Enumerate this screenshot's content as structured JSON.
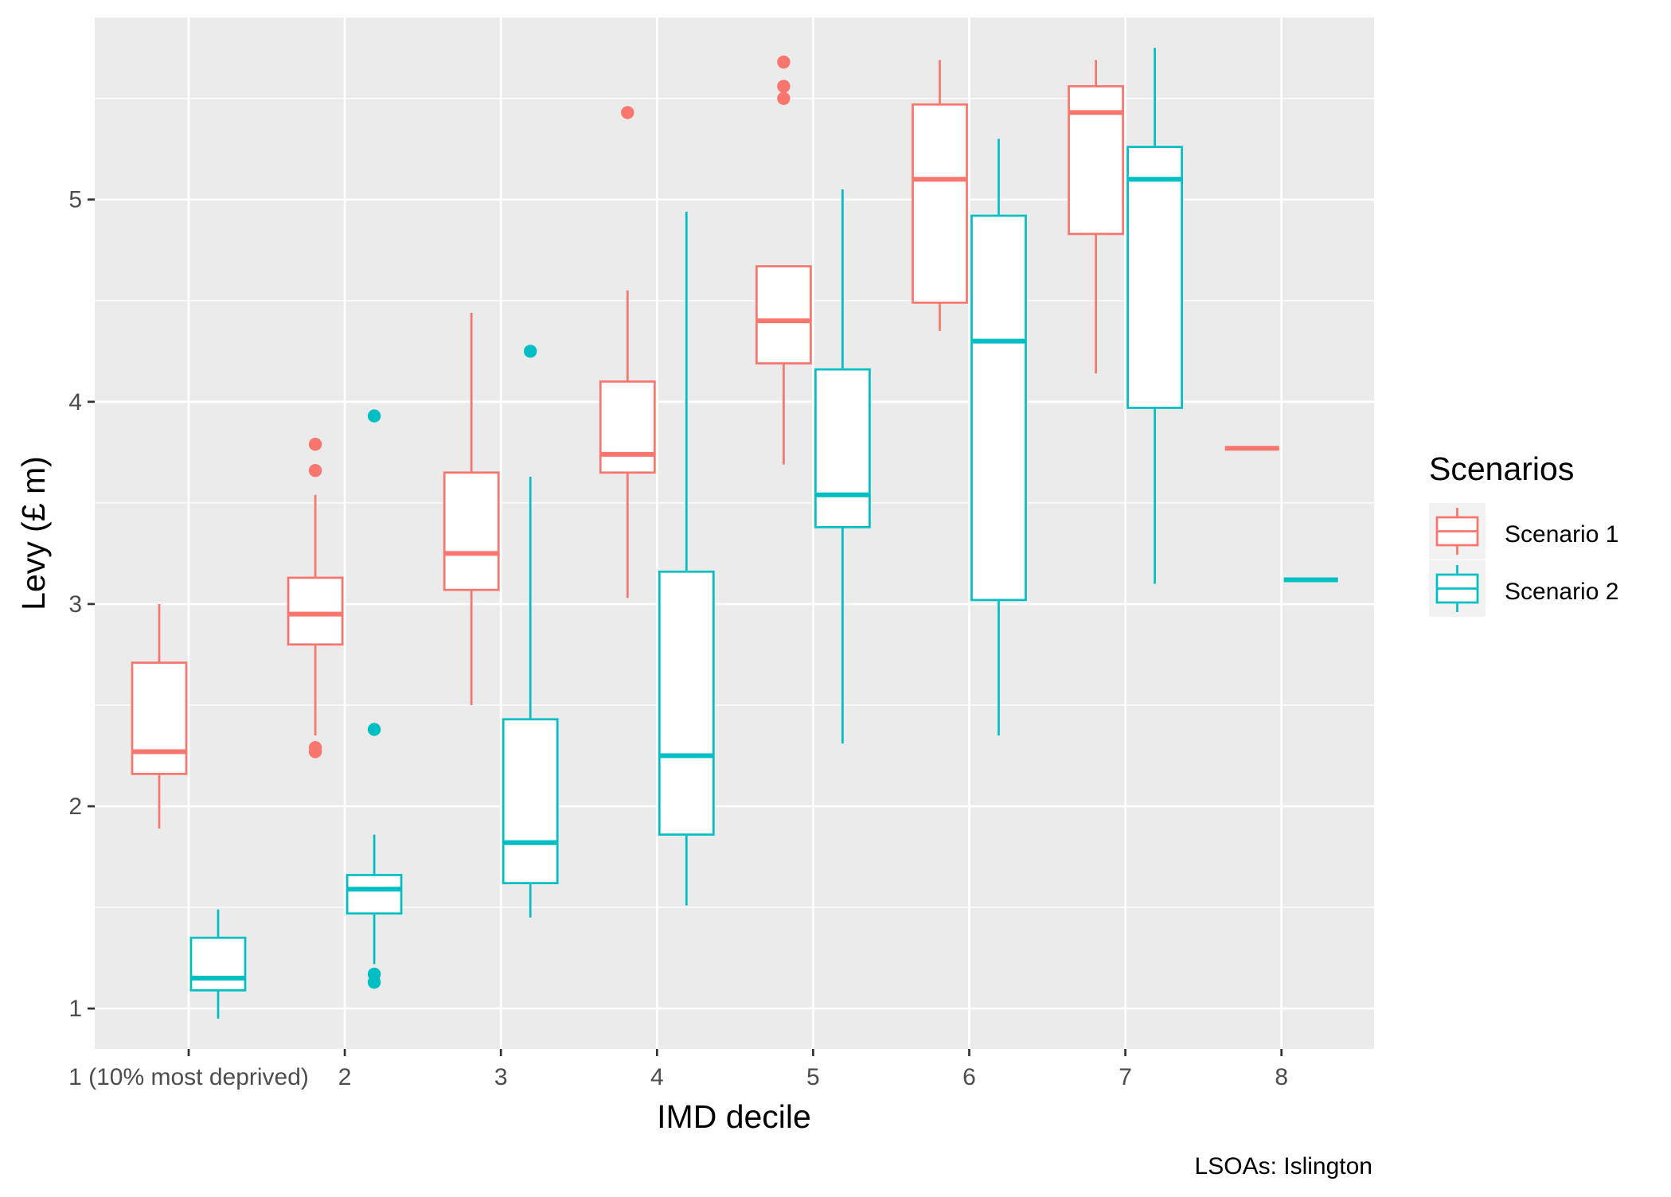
{
  "chart_data": {
    "type": "boxplot",
    "xlabel": "IMD decile",
    "ylabel": "Levy (£ m)",
    "caption": "LSOAs: Islington",
    "categories": [
      "1 (10% most deprived)",
      "2",
      "3",
      "4",
      "5",
      "6",
      "7",
      "8"
    ],
    "ylim": [
      0.8,
      5.9
    ],
    "y_ticks": [
      1,
      2,
      3,
      4,
      5
    ],
    "grid": true,
    "legend": {
      "title": "Scenarios",
      "position": "right"
    },
    "series": [
      {
        "name": "Scenario 1",
        "color": "#F8766D",
        "boxes": [
          {
            "category": "1 (10% most deprived)",
            "lower_whisker": 1.89,
            "q1": 2.16,
            "median": 2.27,
            "q3": 2.71,
            "upper_whisker": 3.0,
            "outliers": []
          },
          {
            "category": "2",
            "lower_whisker": 2.35,
            "q1": 2.8,
            "median": 2.95,
            "q3": 3.13,
            "upper_whisker": 3.54,
            "outliers": [
              2.27,
              2.29,
              3.66,
              3.79
            ]
          },
          {
            "category": "3",
            "lower_whisker": 2.5,
            "q1": 3.07,
            "median": 3.25,
            "q3": 3.65,
            "upper_whisker": 4.44,
            "outliers": []
          },
          {
            "category": "4",
            "lower_whisker": 3.03,
            "q1": 3.65,
            "median": 3.74,
            "q3": 4.1,
            "upper_whisker": 4.55,
            "outliers": [
              5.43
            ]
          },
          {
            "category": "5",
            "lower_whisker": 3.69,
            "q1": 4.19,
            "median": 4.4,
            "q3": 4.67,
            "upper_whisker": 4.67,
            "outliers": [
              5.5,
              5.56,
              5.68
            ]
          },
          {
            "category": "6",
            "lower_whisker": 4.35,
            "q1": 4.49,
            "median": 5.1,
            "q3": 5.47,
            "upper_whisker": 5.69,
            "outliers": []
          },
          {
            "category": "7",
            "lower_whisker": 4.14,
            "q1": 4.83,
            "median": 5.43,
            "q3": 5.56,
            "upper_whisker": 5.69,
            "outliers": []
          },
          {
            "category": "8",
            "lower_whisker": 3.77,
            "q1": 3.77,
            "median": 3.77,
            "q3": 3.77,
            "upper_whisker": 3.77,
            "outliers": []
          }
        ]
      },
      {
        "name": "Scenario 2",
        "color": "#00BFC4",
        "boxes": [
          {
            "category": "1 (10% most deprived)",
            "lower_whisker": 0.95,
            "q1": 1.09,
            "median": 1.15,
            "q3": 1.35,
            "upper_whisker": 1.49,
            "outliers": []
          },
          {
            "category": "2",
            "lower_whisker": 1.22,
            "q1": 1.47,
            "median": 1.59,
            "q3": 1.66,
            "upper_whisker": 1.86,
            "outliers": [
              1.13,
              1.17,
              2.38,
              3.93
            ]
          },
          {
            "category": "3",
            "lower_whisker": 1.45,
            "q1": 1.62,
            "median": 1.82,
            "q3": 2.43,
            "upper_whisker": 3.63,
            "outliers": [
              4.25
            ]
          },
          {
            "category": "4",
            "lower_whisker": 1.51,
            "q1": 1.86,
            "median": 2.25,
            "q3": 3.16,
            "upper_whisker": 4.94,
            "outliers": []
          },
          {
            "category": "5",
            "lower_whisker": 2.31,
            "q1": 3.38,
            "median": 3.54,
            "q3": 4.16,
            "upper_whisker": 5.05,
            "outliers": []
          },
          {
            "category": "6",
            "lower_whisker": 2.35,
            "q1": 3.02,
            "median": 4.3,
            "q3": 4.92,
            "upper_whisker": 5.3,
            "outliers": []
          },
          {
            "category": "7",
            "lower_whisker": 3.1,
            "q1": 3.97,
            "median": 5.1,
            "q3": 5.26,
            "upper_whisker": 5.75,
            "outliers": []
          },
          {
            "category": "8",
            "lower_whisker": 3.12,
            "q1": 3.12,
            "median": 3.12,
            "q3": 3.12,
            "upper_whisker": 3.12,
            "outliers": []
          }
        ]
      }
    ]
  }
}
